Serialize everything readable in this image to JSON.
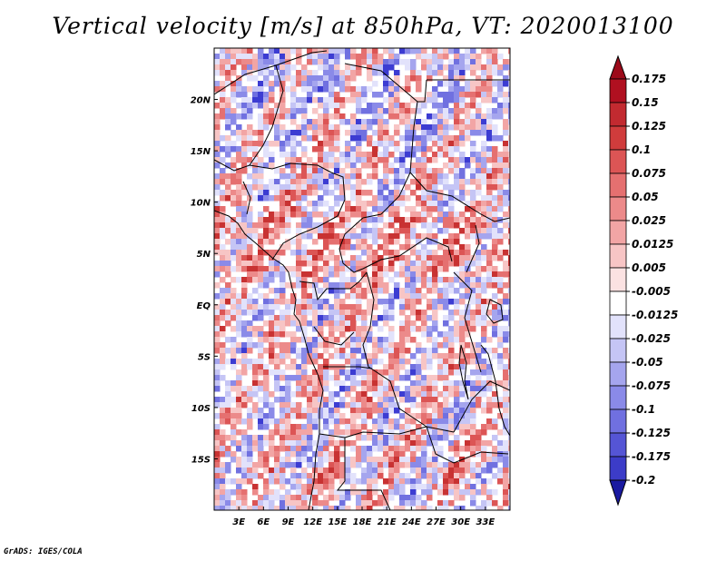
{
  "title": "Vertical velocity [m/s] at 850hPa, VT: 2020013100",
  "footer": "GrADS: IGES/COLA",
  "map": {
    "lon_range": [
      0,
      36
    ],
    "lat_range": [
      -20,
      25
    ],
    "lat_ticks": [
      {
        "value": 20,
        "label": "20N"
      },
      {
        "value": 15,
        "label": "15N"
      },
      {
        "value": 10,
        "label": "10N"
      },
      {
        "value": 5,
        "label": "5N"
      },
      {
        "value": 0,
        "label": "EQ"
      },
      {
        "value": -5,
        "label": "5S"
      },
      {
        "value": -10,
        "label": "10S"
      },
      {
        "value": -15,
        "label": "15S"
      }
    ],
    "lon_ticks": [
      {
        "value": 3,
        "label": "3E"
      },
      {
        "value": 6,
        "label": "6E"
      },
      {
        "value": 9,
        "label": "9E"
      },
      {
        "value": 12,
        "label": "12E"
      },
      {
        "value": 15,
        "label": "15E"
      },
      {
        "value": 18,
        "label": "18E"
      },
      {
        "value": 21,
        "label": "21E"
      },
      {
        "value": 24,
        "label": "24E"
      },
      {
        "value": 27,
        "label": "27E"
      },
      {
        "value": 30,
        "label": "30E"
      },
      {
        "value": 33,
        "label": "33E"
      }
    ]
  },
  "colorbar": {
    "levels": [
      {
        "label": "0.175",
        "color": "#b01020"
      },
      {
        "label": "0.15",
        "color": "#c22a30"
      },
      {
        "label": "0.125",
        "color": "#d03c3c"
      },
      {
        "label": "0.1",
        "color": "#dc5555"
      },
      {
        "label": "0.075",
        "color": "#e57070"
      },
      {
        "label": "0.05",
        "color": "#ec8a8a"
      },
      {
        "label": "0.025",
        "color": "#f2a5a5"
      },
      {
        "label": "0.0125",
        "color": "#f7c5c5"
      },
      {
        "label": "0.005",
        "color": "#fbe2e2"
      },
      {
        "label": "-0.005",
        "color": "#ffffff"
      },
      {
        "label": "-0.0125",
        "color": "#e2e2fb"
      },
      {
        "label": "-0.025",
        "color": "#c5c5f5"
      },
      {
        "label": "-0.05",
        "color": "#a5a5ee"
      },
      {
        "label": "-0.075",
        "color": "#8a8ae8"
      },
      {
        "label": "-0.1",
        "color": "#7070e0"
      },
      {
        "label": "-0.125",
        "color": "#5555d5"
      },
      {
        "label": "-0.175",
        "color": "#3c3cc8"
      },
      {
        "label": "-0.2",
        "color": "#2a2ab8"
      }
    ],
    "top_color": "#9c0a1a",
    "bottom_color": "#1a1aa0"
  },
  "colors": {
    "positive_strong": "#c83232",
    "negative_strong": "#3c3cd2",
    "background": "#ffffff"
  }
}
